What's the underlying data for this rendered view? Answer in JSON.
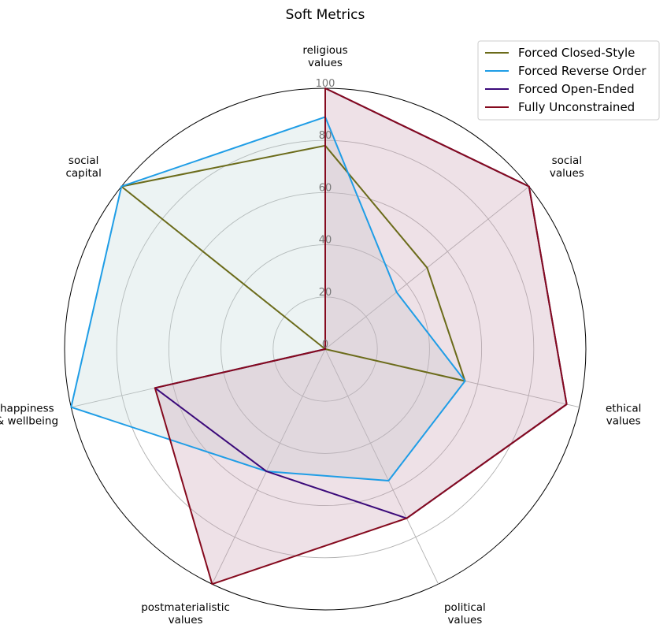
{
  "chart_data": {
    "type": "radar",
    "title": "Soft Metrics",
    "axes": [
      [
        "religious",
        "values"
      ],
      [
        "social",
        "values"
      ],
      [
        "ethical",
        "values"
      ],
      [
        "political",
        "values"
      ],
      [
        "postmaterialistic",
        "values"
      ],
      [
        "happiness",
        "& wellbeing"
      ],
      [
        "social",
        "capital"
      ]
    ],
    "rlim": [
      0,
      100
    ],
    "rticks": [
      0,
      20,
      40,
      60,
      80,
      100
    ],
    "grid": true,
    "legend_position": "top-right",
    "series": [
      {
        "name": "Forced Closed-Style",
        "color": "#6b6b1a",
        "fill": false,
        "values": [
          78,
          50,
          55,
          0,
          0,
          0,
          100
        ]
      },
      {
        "name": "Forced Reverse Order",
        "color": "#1f9de6",
        "fill": true,
        "fill_color": "#bfd6d6",
        "values": [
          89,
          35,
          55,
          56,
          52,
          100,
          100
        ]
      },
      {
        "name": "Forced Open-Ended",
        "color": "#3b0a7a",
        "fill": false,
        "values": [
          100,
          100,
          95,
          72,
          52,
          67,
          0
        ]
      },
      {
        "name": "Fully Unconstrained",
        "color": "#850a1e",
        "fill": true,
        "fill_color": "#c79aae",
        "values": [
          100,
          100,
          95,
          72,
          100,
          67,
          0
        ]
      }
    ]
  }
}
